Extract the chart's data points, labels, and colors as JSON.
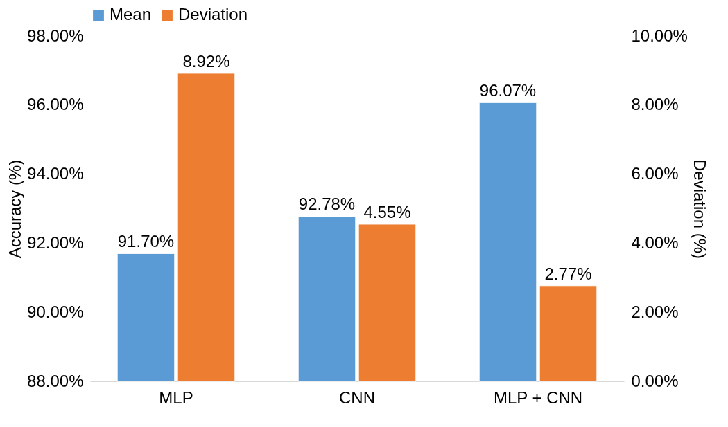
{
  "chart_data": {
    "type": "bar",
    "ylabel": "Accuracy (%)",
    "y2label": "Deviation (%)",
    "categories": [
      "MLP",
      "CNN",
      "MLP + CNN"
    ],
    "series": [
      {
        "name": "Mean",
        "color": "#5b9bd5",
        "values": [
          91.7,
          92.78,
          96.07
        ],
        "value_labels": [
          "91.70%",
          "92.78%",
          "96.07%"
        ]
      },
      {
        "name": "Deviation",
        "color": "#ed7d31",
        "axis": "y2",
        "values": [
          8.92,
          4.55,
          2.77
        ],
        "value_labels": [
          "8.92%",
          "4.55%",
          "2.77%"
        ]
      }
    ],
    "ylim": [
      88,
      98
    ],
    "yticks": [
      {
        "value": 88,
        "label": "88.00%"
      },
      {
        "value": 90,
        "label": "90.00%"
      },
      {
        "value": 92,
        "label": "92.00%"
      },
      {
        "value": 94,
        "label": "94.00%"
      },
      {
        "value": 96,
        "label": "96.00%"
      },
      {
        "value": 98,
        "label": "98.00%"
      }
    ],
    "y2lim": [
      0,
      10
    ],
    "y2ticks": [
      {
        "value": 0,
        "label": "0.00%"
      },
      {
        "value": 2,
        "label": "2.00%"
      },
      {
        "value": 4,
        "label": "4.00%"
      },
      {
        "value": 6,
        "label": "6.00%"
      },
      {
        "value": 8,
        "label": "8.00%"
      },
      {
        "value": 10,
        "label": "10.00%"
      }
    ],
    "legend": "top",
    "grid": false
  }
}
